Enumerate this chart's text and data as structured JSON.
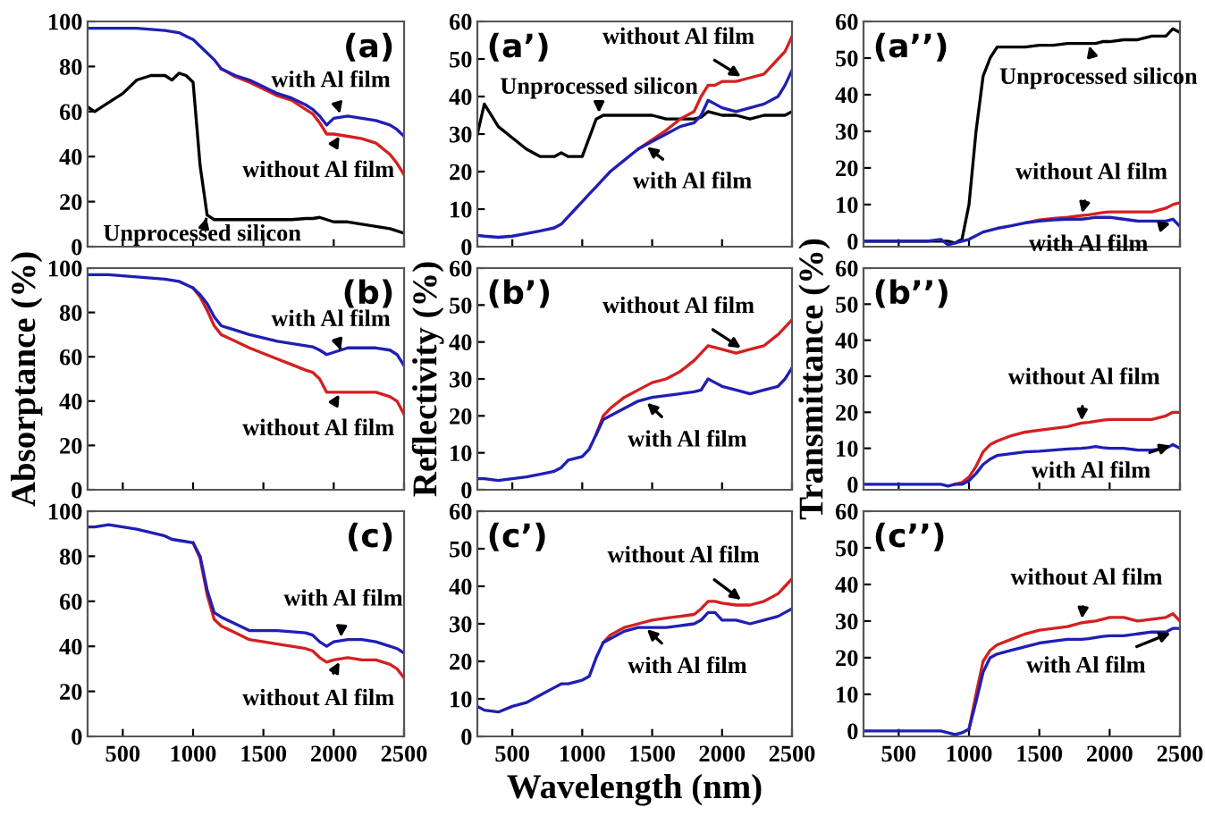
{
  "chart_data": [
    {
      "type": "line",
      "title": "(a)",
      "ylabel": null,
      "x": [
        250,
        300,
        400,
        500,
        600,
        700,
        800,
        850,
        900,
        950,
        1000,
        1050,
        1100,
        1150,
        1200,
        1300,
        1400,
        1500,
        1600,
        1700,
        1800,
        1850,
        1900,
        1950,
        2000,
        2100,
        2200,
        2300,
        2400,
        2450,
        2500
      ],
      "xlim": [
        250,
        2500
      ],
      "xticks": [
        500,
        1000,
        1500,
        2000,
        2500
      ],
      "ylim": [
        0,
        100
      ],
      "yticks": [
        0,
        20,
        40,
        60,
        80,
        100
      ],
      "tick_labels": "y",
      "grid": false,
      "legend": false,
      "series": [
        {
          "color": "#d42020",
          "values": [
            null,
            null,
            null,
            null,
            null,
            null,
            null,
            null,
            null,
            null,
            null,
            null,
            null,
            null,
            79,
            75.5,
            73,
            70,
            67,
            65,
            61,
            59,
            55,
            50,
            50,
            49,
            48,
            46,
            41,
            37,
            32
          ]
        },
        {
          "color": "#1f1fb4",
          "values": [
            97,
            97,
            97,
            97,
            97,
            96.5,
            96,
            95.5,
            95,
            93.5,
            92,
            89,
            86,
            83,
            79,
            76,
            74,
            71,
            68,
            66,
            63,
            61,
            58,
            54,
            57,
            58,
            57,
            56,
            54,
            52,
            49
          ]
        },
        {
          "color": "#000000",
          "values": [
            62,
            60,
            64,
            68,
            74,
            76,
            76,
            74,
            77,
            76,
            73,
            36,
            14,
            12,
            12,
            12,
            12,
            12,
            12,
            12,
            12.5,
            12.5,
            13,
            12,
            11,
            11,
            10,
            9,
            8,
            7,
            6
          ]
        }
      ],
      "annotations": [
        {
          "text": "with Al film",
          "x": 2050,
          "y": 58
        },
        {
          "text": "without Al film",
          "x": 2050,
          "y": 50
        },
        {
          "text": "Unprocessed silicon",
          "x": 1100,
          "y": 14
        }
      ]
    },
    {
      "type": "line",
      "title": "(a’)",
      "x": [
        250,
        300,
        400,
        500,
        600,
        700,
        800,
        850,
        900,
        950,
        1000,
        1050,
        1100,
        1150,
        1200,
        1300,
        1400,
        1500,
        1600,
        1700,
        1800,
        1850,
        1900,
        1950,
        2000,
        2100,
        2200,
        2300,
        2400,
        2450,
        2500
      ],
      "xlim": [
        250,
        2500
      ],
      "xticks": [
        500,
        1000,
        1500,
        2000,
        2500
      ],
      "ylim": [
        0,
        60
      ],
      "yticks": [
        0,
        10,
        20,
        30,
        40,
        50,
        60
      ],
      "tick_labels": "y",
      "grid": false,
      "legend": false,
      "series": [
        {
          "color": "#000000",
          "values": [
            30,
            38,
            32,
            29,
            26,
            24,
            24,
            25,
            24,
            24,
            24,
            29,
            34,
            35,
            35,
            35,
            35,
            35,
            34,
            34,
            34,
            34.5,
            36,
            35.5,
            35,
            35,
            34,
            35,
            35,
            35,
            36
          ]
        },
        {
          "color": "#d42020",
          "values": [
            null,
            null,
            null,
            null,
            null,
            null,
            null,
            null,
            null,
            null,
            null,
            null,
            null,
            null,
            null,
            null,
            26,
            28.5,
            31,
            34,
            36,
            40,
            43,
            43,
            44,
            44,
            45,
            46,
            50,
            52,
            56
          ]
        },
        {
          "color": "#1f1fb4",
          "values": [
            3,
            2.8,
            2.5,
            2.8,
            3.5,
            4.2,
            5,
            6,
            8,
            10,
            12,
            14,
            16,
            18,
            20,
            23,
            26,
            28,
            30,
            32,
            33,
            35,
            39,
            38,
            37,
            36,
            37,
            38,
            40,
            43,
            47
          ]
        }
      ],
      "annotations": [
        {
          "text": "without Al film",
          "x": 2150,
          "y": 45
        },
        {
          "text": "Unprocessed silicon",
          "x": 1120,
          "y": 35
        },
        {
          "text": "with Al film",
          "x": 1450,
          "y": 27
        }
      ]
    },
    {
      "type": "line",
      "title": "(a’’)",
      "x": [
        250,
        300,
        400,
        500,
        600,
        700,
        800,
        850,
        900,
        950,
        1000,
        1050,
        1100,
        1150,
        1200,
        1300,
        1400,
        1500,
        1600,
        1700,
        1800,
        1850,
        1900,
        1950,
        2000,
        2100,
        2200,
        2300,
        2400,
        2450,
        2500
      ],
      "xlim": [
        250,
        2500
      ],
      "xticks": [
        500,
        1000,
        1500,
        2000,
        2500
      ],
      "ylim": [
        -1.5,
        60
      ],
      "yticks": [
        0,
        10,
        20,
        30,
        40,
        50,
        60
      ],
      "tick_labels": "y",
      "grid": false,
      "legend": false,
      "series": [
        {
          "color": "#000000",
          "values": [
            0,
            0,
            0,
            0,
            0,
            0,
            0,
            0,
            -0.5,
            0.5,
            10,
            30,
            45,
            50,
            53,
            53,
            53,
            53.5,
            53.5,
            54,
            54,
            54,
            54,
            54.5,
            54.5,
            55,
            55,
            56,
            56,
            58,
            57
          ]
        },
        {
          "color": "#d42020",
          "values": [
            null,
            null,
            null,
            null,
            null,
            null,
            null,
            null,
            null,
            null,
            null,
            null,
            null,
            null,
            null,
            null,
            5,
            5.8,
            6.2,
            6.5,
            7,
            7.2,
            7.5,
            7.8,
            8,
            8,
            8,
            8,
            9,
            10,
            10.5
          ]
        },
        {
          "color": "#1f1fb4",
          "values": [
            0,
            0,
            0,
            0,
            0,
            0,
            0.5,
            -1,
            -0.5,
            0,
            0.5,
            1.5,
            2.5,
            3,
            3.5,
            4.2,
            5,
            5.5,
            5.8,
            6,
            6,
            6.2,
            6.5,
            6.5,
            6.5,
            6,
            5.5,
            5.5,
            5.5,
            6,
            4
          ]
        }
      ],
      "annotations": [
        {
          "text": "Unprocessed silicon",
          "x": 1850,
          "y": 54
        },
        {
          "text": "without Al film",
          "x": 1800,
          "y": 7
        },
        {
          "text": "with Al film",
          "x": 2450,
          "y": 5
        }
      ]
    },
    {
      "type": "line",
      "title": "(b)",
      "ylabel": "Absorptance (%)",
      "x": [
        250,
        300,
        400,
        500,
        600,
        700,
        800,
        850,
        900,
        950,
        1000,
        1050,
        1100,
        1150,
        1200,
        1300,
        1400,
        1500,
        1600,
        1700,
        1800,
        1850,
        1900,
        1950,
        2000,
        2100,
        2200,
        2300,
        2400,
        2450,
        2500
      ],
      "xlim": [
        250,
        2500
      ],
      "xticks": [
        500,
        1000,
        1500,
        2000,
        2500
      ],
      "ylim": [
        0,
        100
      ],
      "yticks": [
        0,
        20,
        40,
        60,
        80,
        100
      ],
      "tick_labels": "y",
      "grid": false,
      "legend": false,
      "series": [
        {
          "color": "#d42020",
          "values": [
            null,
            null,
            null,
            null,
            null,
            null,
            null,
            null,
            null,
            null,
            91,
            87,
            81,
            74,
            70,
            67,
            64,
            61.5,
            59,
            56.5,
            54,
            53,
            50,
            44,
            44,
            44,
            44,
            44,
            42,
            40,
            34
          ]
        },
        {
          "color": "#1f1fb4",
          "values": [
            97,
            97,
            97,
            96.5,
            96,
            95.5,
            95,
            94.5,
            94,
            92.5,
            91,
            88,
            84,
            78,
            74,
            72,
            70,
            68.5,
            67,
            66,
            65,
            64.5,
            63,
            61,
            62,
            64,
            64,
            64,
            63,
            61,
            56
          ]
        }
      ],
      "annotations": [
        {
          "text": "with Al film",
          "x": 2050,
          "y": 63
        },
        {
          "text": "without Al film",
          "x": 2050,
          "y": 44
        }
      ]
    },
    {
      "type": "line",
      "title": "(b’)",
      "ylabel": "Reflectivity (%)",
      "x": [
        250,
        300,
        400,
        500,
        600,
        700,
        800,
        850,
        900,
        950,
        1000,
        1050,
        1100,
        1150,
        1200,
        1300,
        1400,
        1500,
        1600,
        1700,
        1800,
        1850,
        1900,
        1950,
        2000,
        2100,
        2200,
        2300,
        2400,
        2450,
        2500
      ],
      "xlim": [
        250,
        2500
      ],
      "xticks": [
        500,
        1000,
        1500,
        2000,
        2500
      ],
      "ylim": [
        0,
        60
      ],
      "yticks": [
        0,
        10,
        20,
        30,
        40,
        50,
        60
      ],
      "tick_labels": "y",
      "grid": false,
      "legend": false,
      "series": [
        {
          "color": "#d42020",
          "values": [
            null,
            null,
            null,
            null,
            null,
            null,
            null,
            null,
            null,
            null,
            null,
            null,
            15,
            20,
            22,
            25,
            27,
            29,
            30,
            32,
            35,
            37,
            39,
            38.5,
            38,
            37,
            38,
            39,
            42,
            44,
            46
          ]
        },
        {
          "color": "#1f1fb4",
          "values": [
            3,
            3,
            2.5,
            3,
            3.5,
            4.2,
            5,
            6,
            8,
            8.5,
            9,
            11,
            15,
            19,
            20,
            22,
            24,
            25,
            25.5,
            26,
            26.5,
            27,
            30,
            29,
            28,
            27,
            26,
            27,
            28,
            30,
            33
          ]
        }
      ],
      "annotations": [
        {
          "text": "without Al film",
          "x": 2150,
          "y": 38
        },
        {
          "text": "with Al film",
          "x": 1450,
          "y": 24
        }
      ]
    },
    {
      "type": "line",
      "title": "(b’’)",
      "ylabel": "Transmittance (%)",
      "x": [
        250,
        300,
        400,
        500,
        600,
        700,
        800,
        850,
        900,
        950,
        1000,
        1050,
        1100,
        1150,
        1200,
        1300,
        1400,
        1500,
        1600,
        1700,
        1800,
        1850,
        1900,
        1950,
        2000,
        2100,
        2200,
        2300,
        2400,
        2450,
        2500
      ],
      "xlim": [
        250,
        2500
      ],
      "xticks": [
        500,
        1000,
        1500,
        2000,
        2500
      ],
      "ylim": [
        -1.5,
        60
      ],
      "yticks": [
        0,
        10,
        20,
        30,
        40,
        50,
        60
      ],
      "tick_labels": "y",
      "grid": false,
      "legend": false,
      "series": [
        {
          "color": "#d42020",
          "values": [
            null,
            null,
            null,
            null,
            null,
            null,
            null,
            null,
            0,
            0.5,
            2,
            5,
            9,
            11,
            12,
            13.5,
            14.5,
            15,
            15.5,
            16,
            17,
            17.2,
            17.5,
            17.8,
            18,
            18,
            18,
            18,
            19,
            20,
            20
          ]
        },
        {
          "color": "#1f1fb4",
          "values": [
            0,
            0,
            0,
            0,
            0,
            0,
            0,
            -0.5,
            0,
            0,
            1,
            3,
            5.5,
            7,
            8,
            8.5,
            9,
            9.2,
            9.5,
            9.8,
            10,
            10.2,
            10.5,
            10.2,
            10,
            10,
            9.5,
            9.5,
            10,
            11,
            10
          ]
        }
      ],
      "annotations": [
        {
          "text": "without Al film",
          "x": 1800,
          "y": 17
        },
        {
          "text": "with Al film",
          "x": 2450,
          "y": 11
        }
      ]
    },
    {
      "type": "line",
      "title": "(c)",
      "x": [
        250,
        300,
        400,
        500,
        600,
        700,
        800,
        850,
        900,
        950,
        1000,
        1050,
        1100,
        1150,
        1200,
        1300,
        1400,
        1500,
        1600,
        1700,
        1800,
        1850,
        1900,
        1950,
        2000,
        2100,
        2200,
        2300,
        2400,
        2450,
        2500
      ],
      "xlim": [
        250,
        2500
      ],
      "xticks": [
        500,
        1000,
        1500,
        2000,
        2500
      ],
      "ylim": [
        0,
        100
      ],
      "yticks": [
        0,
        20,
        40,
        60,
        80,
        100
      ],
      "grid": false,
      "legend": false,
      "series": [
        {
          "color": "#d42020",
          "values": [
            null,
            null,
            null,
            null,
            null,
            null,
            null,
            null,
            null,
            null,
            86,
            79,
            63,
            52,
            49,
            46,
            43,
            42,
            41,
            40,
            39,
            38,
            35,
            33,
            34,
            35,
            34,
            34,
            32,
            30,
            26
          ]
        },
        {
          "color": "#1f1fb4",
          "values": [
            93,
            93,
            94,
            93,
            92,
            90.5,
            89,
            87.5,
            87,
            86.5,
            86,
            80,
            65,
            55,
            53,
            50,
            47,
            47,
            47,
            46.5,
            46,
            45,
            42,
            40,
            42,
            43,
            43,
            42,
            40,
            39,
            37
          ]
        }
      ],
      "annotations": [
        {
          "text": "with Al film",
          "x": 2050,
          "y": 43
        },
        {
          "text": "without Al film",
          "x": 2050,
          "y": 34
        }
      ]
    },
    {
      "type": "line",
      "title": "(c’)",
      "xlabel": "Wavelength (nm)",
      "x": [
        250,
        300,
        400,
        500,
        600,
        700,
        800,
        850,
        900,
        950,
        1000,
        1050,
        1100,
        1150,
        1200,
        1300,
        1400,
        1500,
        1600,
        1700,
        1800,
        1850,
        1900,
        1950,
        2000,
        2100,
        2200,
        2300,
        2400,
        2450,
        2500
      ],
      "xlim": [
        250,
        2500
      ],
      "xticks": [
        500,
        1000,
        1500,
        2000,
        2500
      ],
      "ylim": [
        0,
        60
      ],
      "yticks": [
        0,
        10,
        20,
        30,
        40,
        50,
        60
      ],
      "grid": false,
      "legend": false,
      "series": [
        {
          "color": "#d42020",
          "values": [
            null,
            null,
            null,
            null,
            null,
            null,
            null,
            null,
            null,
            null,
            null,
            null,
            null,
            25,
            27,
            29,
            30,
            31,
            31.5,
            32,
            32.5,
            34,
            36,
            36,
            35.5,
            35,
            35,
            36,
            38,
            40,
            42
          ]
        },
        {
          "color": "#1f1fb4",
          "values": [
            8,
            7,
            6.5,
            8,
            9,
            11,
            13,
            14,
            14,
            14.5,
            15,
            16,
            21,
            25,
            26,
            28,
            29,
            29,
            29,
            29.5,
            30,
            31,
            33,
            33,
            31,
            31,
            30,
            31,
            32,
            33,
            34
          ]
        }
      ],
      "annotations": [
        {
          "text": "without Al film",
          "x": 2150,
          "y": 36
        },
        {
          "text": "with Al film",
          "x": 1450,
          "y": 29
        }
      ]
    },
    {
      "type": "line",
      "title": "(c’’)",
      "x": [
        250,
        300,
        400,
        500,
        600,
        700,
        800,
        850,
        900,
        950,
        1000,
        1050,
        1100,
        1150,
        1200,
        1300,
        1400,
        1500,
        1600,
        1700,
        1800,
        1850,
        1900,
        1950,
        2000,
        2100,
        2200,
        2300,
        2400,
        2450,
        2500
      ],
      "xlim": [
        250,
        2500
      ],
      "xticks": [
        500,
        1000,
        1500,
        2000,
        2500
      ],
      "ylim": [
        -1.5,
        60
      ],
      "yticks": [
        0,
        10,
        20,
        30,
        40,
        50,
        60
      ],
      "grid": false,
      "legend": false,
      "series": [
        {
          "color": "#d42020",
          "values": [
            null,
            null,
            null,
            null,
            null,
            null,
            null,
            null,
            null,
            null,
            0.5,
            10,
            19,
            22,
            23.5,
            25,
            26.5,
            27.5,
            28,
            28.5,
            29.5,
            29.8,
            30,
            30.5,
            31,
            31,
            30,
            30.5,
            31,
            32,
            30
          ]
        },
        {
          "color": "#1f1fb4",
          "values": [
            0,
            0,
            0,
            0,
            0,
            0,
            0,
            -0.5,
            -1,
            -0.5,
            0.5,
            8,
            16,
            20,
            21,
            22,
            23,
            24,
            24.5,
            25,
            25,
            25.2,
            25.5,
            25.8,
            26,
            26,
            26.5,
            27,
            27,
            28,
            28
          ]
        }
      ],
      "annotations": [
        {
          "text": "without Al film",
          "x": 1800,
          "y": 30
        },
        {
          "text": "with Al film",
          "x": 2450,
          "y": 27
        }
      ]
    }
  ]
}
